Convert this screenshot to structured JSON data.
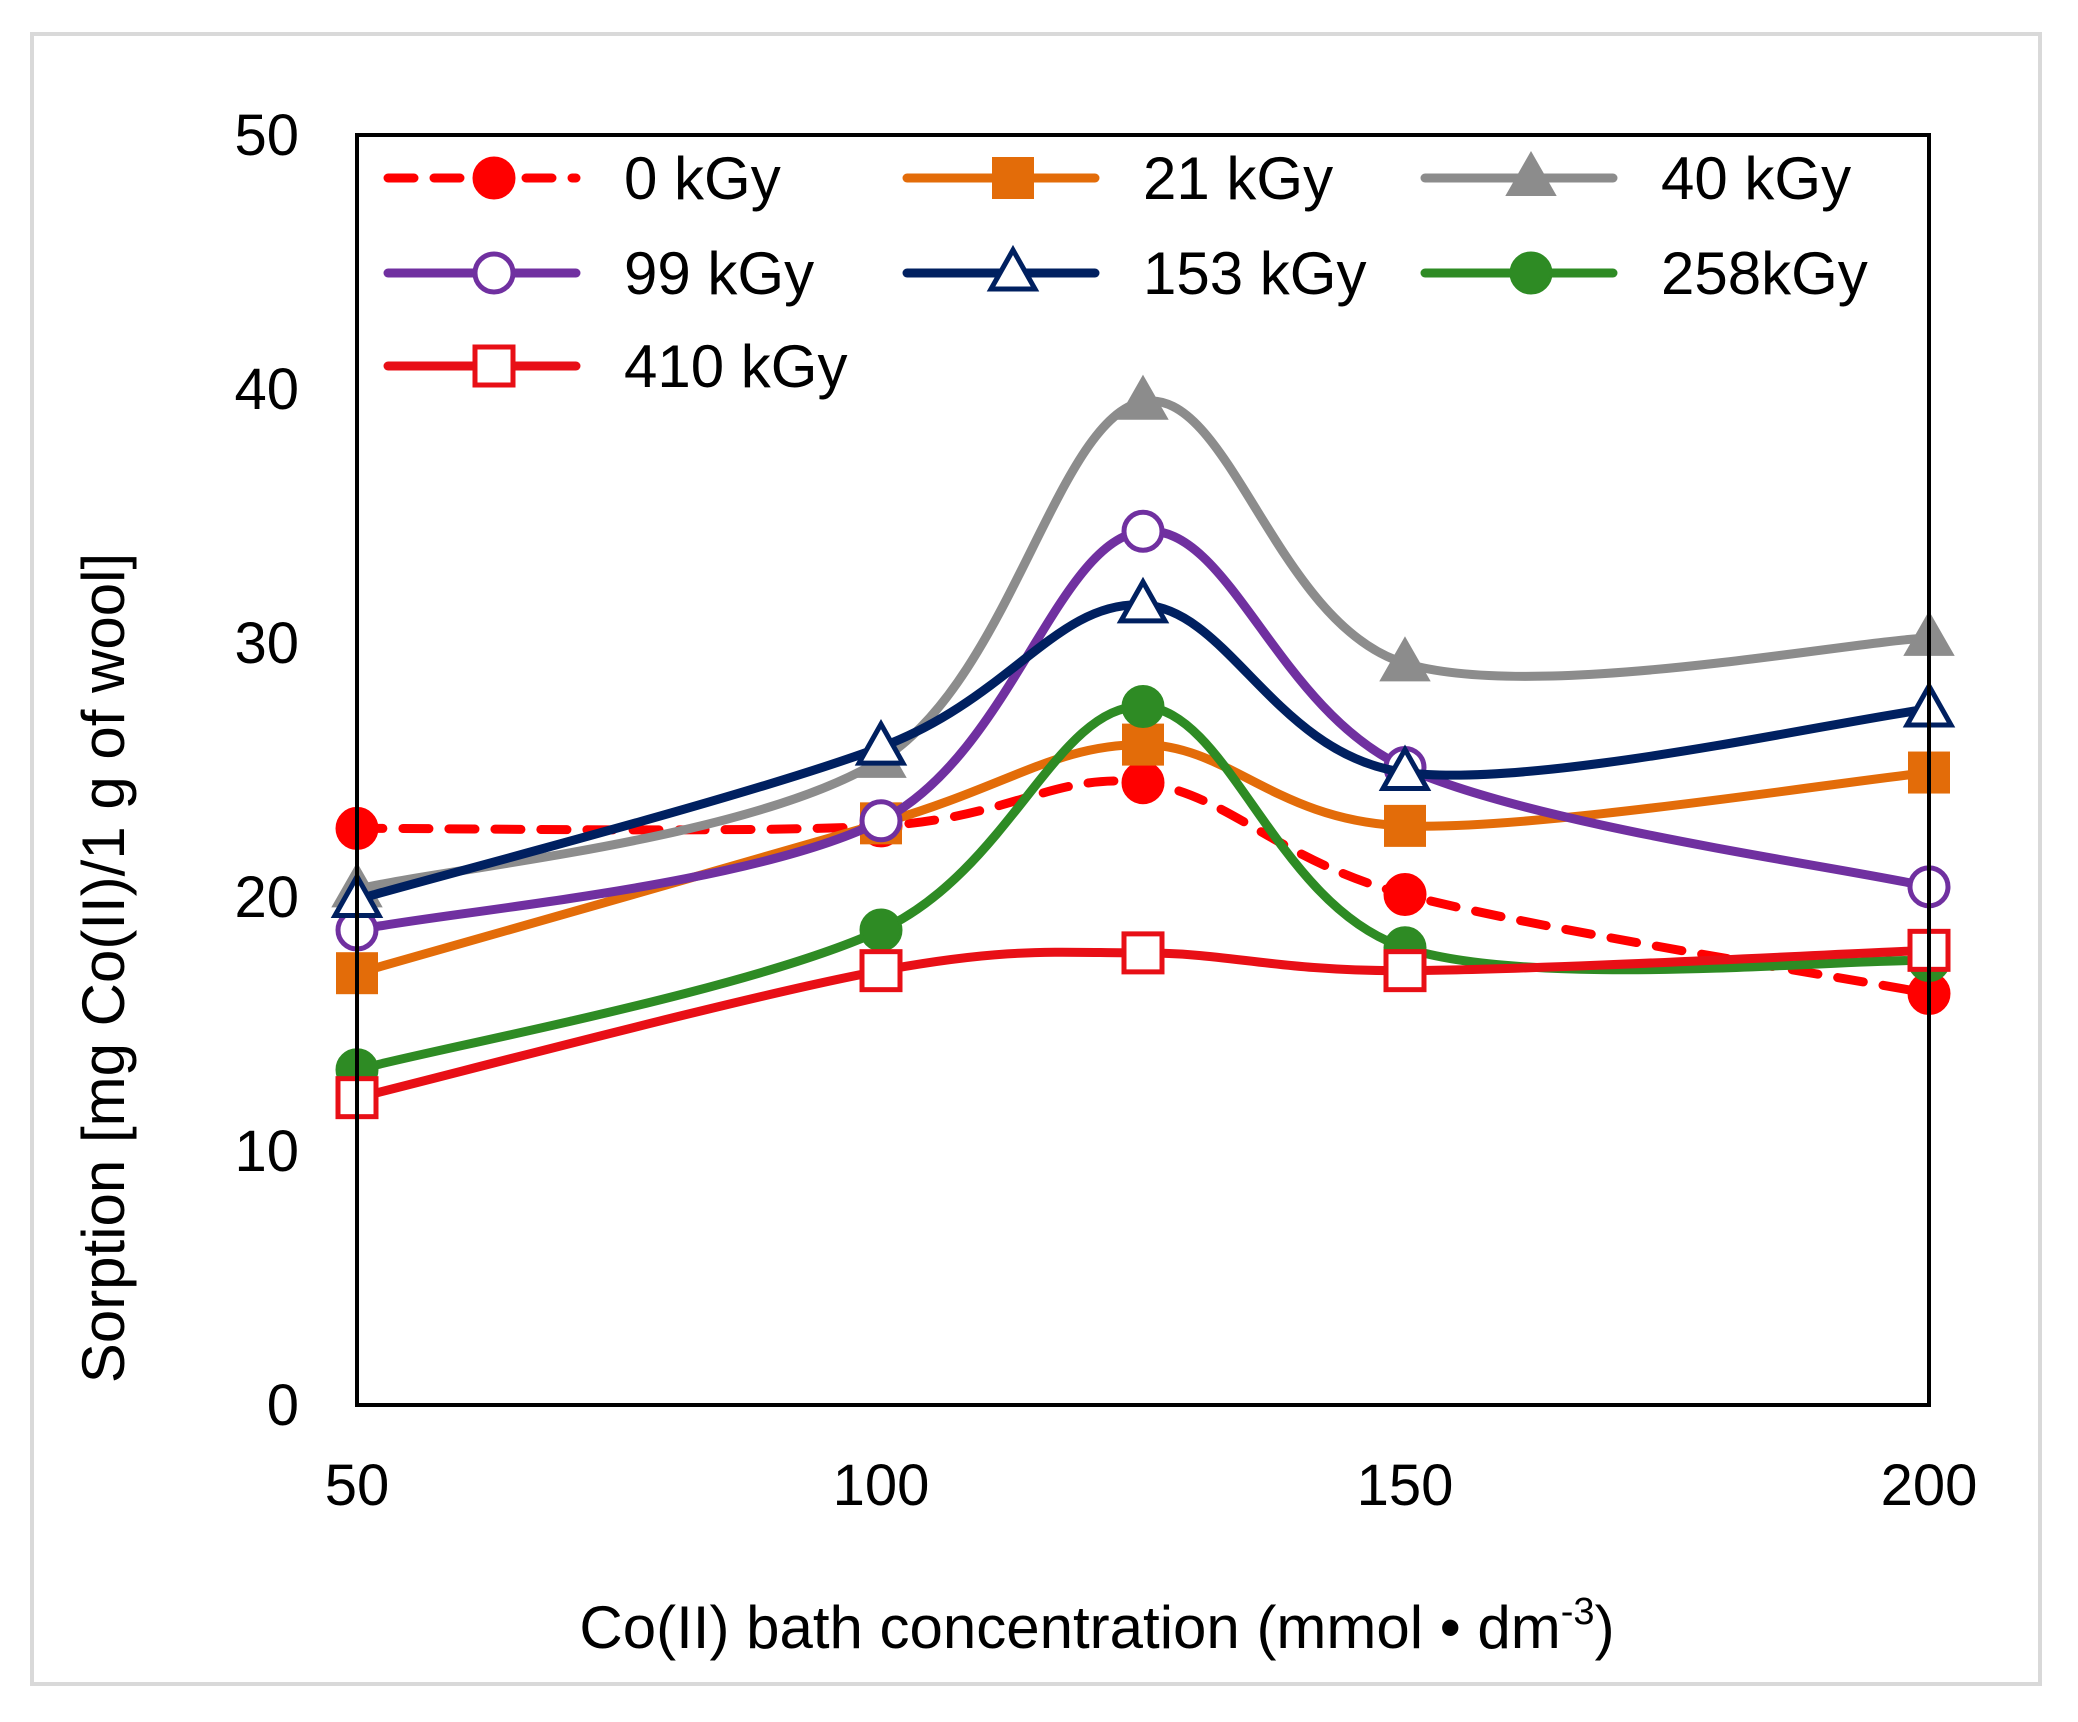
{
  "chart_data": {
    "type": "line",
    "title": "",
    "xlabel_main": "Co(II) bath concentration (mmol • dm",
    "xlabel_sup": "-3",
    "xlabel_end": ")",
    "ylabel": "Sorption [mg Co(II)/1 g of wool]",
    "x": [
      50,
      100,
      125,
      150,
      200
    ],
    "xlim": [
      50,
      200
    ],
    "ylim": [
      0,
      50
    ],
    "xticks": [
      50,
      100,
      150,
      200
    ],
    "xtick_labels": [
      "50",
      "100",
      "150",
      "200"
    ],
    "yticks": [
      0,
      10,
      20,
      30,
      40,
      50
    ],
    "ytick_labels": [
      "0",
      "10",
      "20",
      "30",
      "40",
      "50"
    ],
    "grid": false,
    "legend_position": "top",
    "series": [
      {
        "name": "0 kGy",
        "values": [
          22.7,
          22.8,
          24.5,
          20.1,
          16.2
        ],
        "color": "#ff0000",
        "marker": "filled-circle",
        "dashed": true
      },
      {
        "name": "21 kGy",
        "values": [
          17.0,
          22.9,
          26.0,
          22.8,
          24.9
        ],
        "color": "#e36c09",
        "marker": "filled-square",
        "dashed": false
      },
      {
        "name": "40 kGy",
        "values": [
          20.3,
          25.4,
          39.5,
          29.2,
          30.2
        ],
        "color": "#8c8c8c",
        "marker": "filled-triangle",
        "dashed": false
      },
      {
        "name": "99 kGy",
        "values": [
          18.7,
          23.0,
          34.4,
          25.1,
          20.4
        ],
        "color": "#7030a0",
        "marker": "open-circle",
        "dashed": false
      },
      {
        "name": "153 kGy",
        "values": [
          19.9,
          25.9,
          31.5,
          24.9,
          27.4
        ],
        "color": "#002060",
        "marker": "open-triangle",
        "dashed": false
      },
      {
        "name": "258kGy",
        "values": [
          13.2,
          18.7,
          27.5,
          18.0,
          17.5
        ],
        "color": "#2e8b24",
        "marker": "filled-circle",
        "dashed": false
      },
      {
        "name": "410 kGy",
        "values": [
          12.1,
          17.1,
          17.8,
          17.1,
          17.9
        ],
        "color": "#e80f16",
        "marker": "open-square",
        "dashed": false
      }
    ]
  }
}
